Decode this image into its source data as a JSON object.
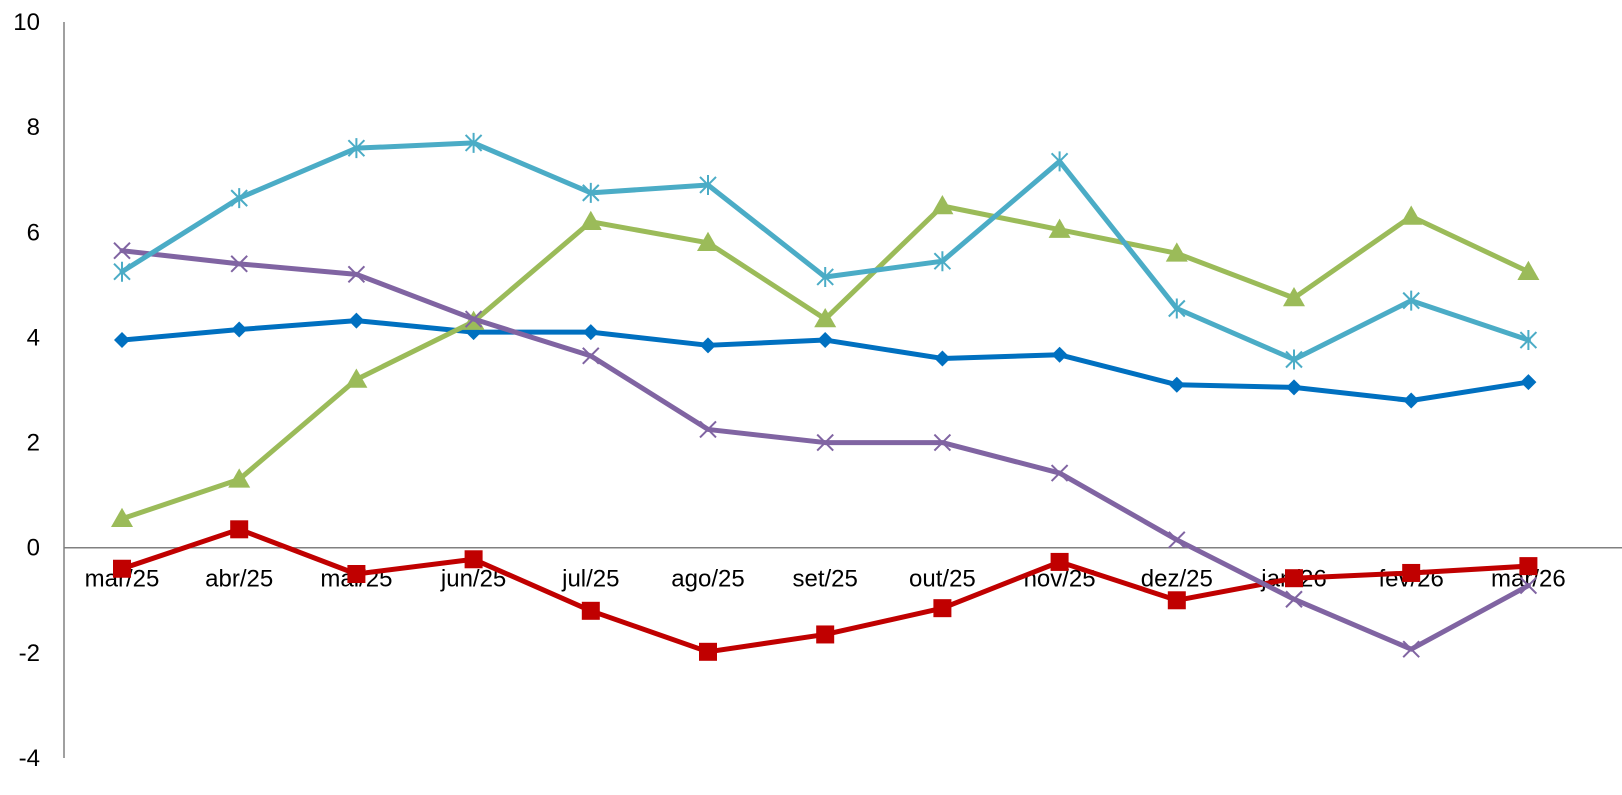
{
  "chart_data": {
    "type": "line",
    "title": "",
    "xlabel": "",
    "ylabel": "",
    "categories": [
      "mar/25",
      "abr/25",
      "mai/25",
      "jun/25",
      "jul/25",
      "ago/25",
      "set/25",
      "out/25",
      "nov/25",
      "dez/25",
      "jan/26",
      "fev/26",
      "mar/26"
    ],
    "ylim": [
      -4,
      10
    ],
    "yticks": [
      -4,
      -2,
      0,
      2,
      4,
      6,
      8,
      10
    ],
    "ytick_labels": [
      "-4",
      "-2",
      "0",
      "2",
      "4",
      "6",
      "8",
      "10"
    ],
    "grid": false,
    "legend": "none",
    "series": [
      {
        "marker": "diamond",
        "color": "#0070C0",
        "values": [
          3.95,
          4.15,
          4.32,
          4.1,
          4.1,
          3.85,
          3.95,
          3.6,
          3.67,
          3.1,
          3.05,
          2.8,
          3.15
        ]
      },
      {
        "marker": "square",
        "color": "#C00000",
        "values": [
          -0.4,
          0.35,
          -0.5,
          -0.22,
          -1.2,
          -1.98,
          -1.65,
          -1.15,
          -0.27,
          -1.0,
          -0.58,
          -0.48,
          -0.35
        ]
      },
      {
        "marker": "triangle",
        "color": "#9BBB59",
        "values": [
          0.55,
          1.3,
          3.2,
          4.3,
          6.2,
          5.8,
          4.35,
          6.5,
          6.05,
          5.6,
          4.75,
          6.3,
          5.25
        ]
      },
      {
        "marker": "x",
        "color": "#8064A2",
        "values": [
          5.65,
          5.4,
          5.2,
          4.35,
          3.65,
          2.25,
          2.0,
          2.0,
          1.42,
          0.15,
          -0.98,
          -1.93,
          -0.72
        ]
      },
      {
        "marker": "asterisk",
        "color": "#4BACC6",
        "values": [
          5.25,
          6.65,
          7.6,
          7.7,
          6.75,
          6.9,
          5.15,
          5.45,
          7.35,
          4.55,
          3.58,
          4.7,
          3.95
        ]
      }
    ]
  }
}
